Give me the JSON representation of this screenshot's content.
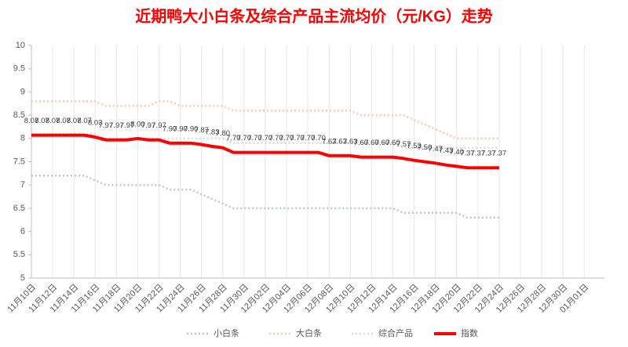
{
  "chart_data": {
    "type": "line",
    "title": "近期鸭大小白条及综合产品主流均价（元/KG）走势",
    "categories": [
      "11月10日",
      null,
      "11月12日",
      null,
      "11月14日",
      null,
      "11月16日",
      null,
      "11月18日",
      null,
      "11月20日",
      null,
      "11月22日",
      null,
      "11月24日",
      null,
      "11月26日",
      null,
      "11月28日",
      null,
      "11月30日",
      null,
      "12月02日",
      null,
      "12月04日",
      null,
      "12月06日",
      null,
      "12月08日",
      null,
      "12月10日",
      null,
      "12月12日",
      null,
      "12月14日",
      null,
      "12月16日",
      null,
      "12月18日",
      null,
      "12月20日",
      null,
      "12月22日",
      null,
      "12月24日",
      null,
      "12月26日",
      null,
      "12月28日",
      null,
      "12月30日",
      null,
      "01月01日",
      null
    ],
    "series": [
      {
        "name": "小白条",
        "color": "#b4c7e7",
        "values": [
          7.2,
          7.2,
          7.2,
          7.2,
          7.2,
          7.2,
          7.1,
          7.0,
          7.0,
          7.0,
          7.0,
          7.0,
          7.0,
          6.9,
          6.9,
          6.9,
          6.8,
          6.7,
          6.6,
          6.5,
          6.5,
          6.5,
          6.5,
          6.5,
          6.5,
          6.5,
          6.5,
          6.5,
          6.5,
          6.5,
          6.5,
          6.5,
          6.5,
          6.5,
          6.5,
          6.4,
          6.4,
          6.4,
          6.4,
          6.4,
          6.4,
          6.3,
          6.3,
          6.3,
          6.3,
          null,
          null,
          null,
          null,
          null,
          null,
          null,
          null,
          null
        ]
      },
      {
        "name": "大白条",
        "color": "#f8cbad",
        "values": [
          8.8,
          8.8,
          8.8,
          8.8,
          8.8,
          8.8,
          8.8,
          8.7,
          8.7,
          8.7,
          8.7,
          8.7,
          8.8,
          8.8,
          8.7,
          8.7,
          8.7,
          8.7,
          8.7,
          8.6,
          8.6,
          8.6,
          8.6,
          8.6,
          8.6,
          8.6,
          8.6,
          8.6,
          8.6,
          8.6,
          8.6,
          8.5,
          8.5,
          8.5,
          8.5,
          8.5,
          8.4,
          8.3,
          8.2,
          8.1,
          8.0,
          8.0,
          8.0,
          8.0,
          8.0,
          null,
          null,
          null,
          null,
          null,
          null,
          null,
          null,
          null
        ]
      },
      {
        "name": "综合产品",
        "color": "#d6dce5",
        "values": [
          8.1,
          8.1,
          8.1,
          8.1,
          8.1,
          8.1,
          8.1,
          8.0,
          8.0,
          8.0,
          8.0,
          8.0,
          8.0,
          8.0,
          8.0,
          8.0,
          8.0,
          8.0,
          8.0,
          7.9,
          7.9,
          7.9,
          7.9,
          7.9,
          7.9,
          7.9,
          7.9,
          7.9,
          7.9,
          7.9,
          7.9,
          7.9,
          7.9,
          7.9,
          7.9,
          7.8,
          7.8,
          7.8,
          7.8,
          7.8,
          7.8,
          7.8,
          7.8,
          7.8,
          7.8,
          null,
          null,
          null,
          null,
          null,
          null,
          null,
          null,
          null
        ]
      },
      {
        "name": "指数",
        "color": "#ff0000",
        "values": [
          8.07,
          8.07,
          8.07,
          8.07,
          8.07,
          8.07,
          8.03,
          7.97,
          7.97,
          7.97,
          8.0,
          7.97,
          7.97,
          7.9,
          7.9,
          7.9,
          7.87,
          7.83,
          7.8,
          7.7,
          7.7,
          7.7,
          7.7,
          7.7,
          7.7,
          7.7,
          7.7,
          7.7,
          7.63,
          7.63,
          7.63,
          7.6,
          7.6,
          7.6,
          7.6,
          7.57,
          7.53,
          7.5,
          7.47,
          7.43,
          7.4,
          7.37,
          7.37,
          7.37,
          7.37,
          null,
          null,
          null,
          null,
          null,
          null,
          null,
          null,
          null
        ],
        "value_labels": [
          "8.07",
          "8.07",
          "8.07",
          "8.07",
          "8.07",
          "8.07",
          "8.03",
          "7.97",
          "7.97",
          "7.97",
          "8.00",
          "7.97",
          "7.97",
          "7.90",
          "7.90",
          "7.90",
          "7.87",
          "7.83",
          "7.80",
          "7.70",
          "7.70",
          "7.70",
          "7.70",
          "7.70",
          "7.70",
          "7.70",
          "7.70",
          "7.70",
          "7.63",
          "7.63",
          "7.63",
          "7.60",
          "7.60",
          "7.60",
          "7.60",
          "7.57",
          "7.53",
          "7.50",
          "7.47",
          "7.43",
          "7.40",
          "7.37",
          "7.37",
          "7.37",
          "7.37",
          null,
          null,
          null,
          null,
          null,
          null,
          null,
          null,
          null
        ]
      }
    ],
    "ylim": [
      5,
      10
    ],
    "yticks": [
      5,
      5.5,
      6,
      6.5,
      7,
      7.5,
      8,
      8.5,
      9,
      9.5,
      10
    ],
    "grid": true,
    "legend": "bottom"
  }
}
